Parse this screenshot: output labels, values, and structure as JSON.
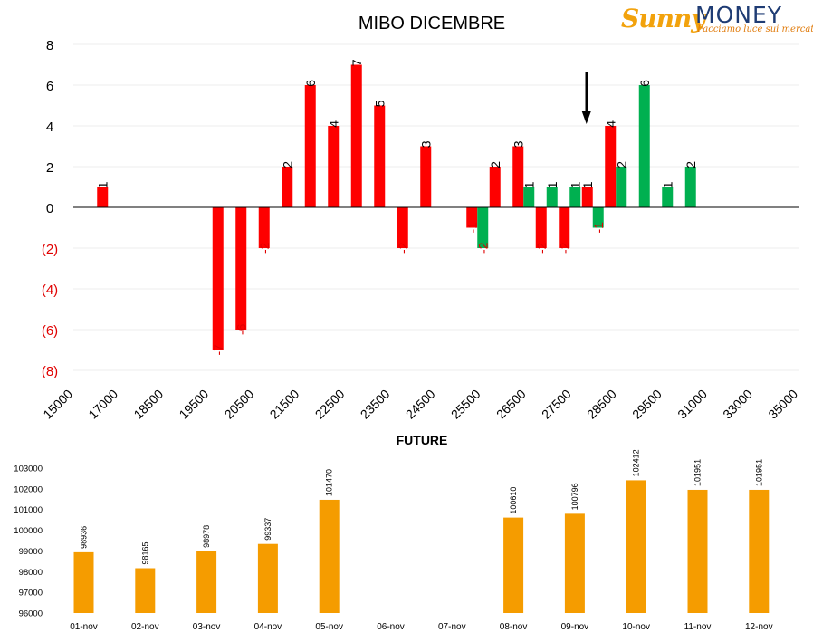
{
  "logo": {
    "brand_a": "Sunny",
    "brand_b": "MONEY",
    "tagline": "Facciamo luce sui mercati"
  },
  "colors": {
    "red": "#fe0000",
    "green": "#00b050",
    "orange": "#f59c00",
    "negative_label": "#e00000"
  },
  "chart_data": [
    {
      "type": "bar",
      "title": "MIBO DICEMBRE",
      "xlabel": "",
      "ylabel": "",
      "ylim": [
        -8,
        8
      ],
      "y_ticks": [
        "8",
        "6",
        "4",
        "2",
        "0",
        "(2)",
        "(4)",
        "(6)",
        "(8)"
      ],
      "y_tick_values": [
        8,
        6,
        4,
        2,
        0,
        -2,
        -4,
        -6,
        -8
      ],
      "x_ticks": [
        "15000",
        "17000",
        "18500",
        "19500",
        "20500",
        "21500",
        "22500",
        "23500",
        "24500",
        "25500",
        "26500",
        "27500",
        "28500",
        "29500",
        "31000",
        "33000",
        "35000"
      ],
      "grid": true,
      "series": [
        {
          "color": "red",
          "points": [
            {
              "slot": 1,
              "value": 1,
              "label": "1"
            },
            {
              "slot": 6,
              "value": -7,
              "label": "-7"
            },
            {
              "slot": 7,
              "value": -6,
              "label": "-6"
            },
            {
              "slot": 8,
              "value": -2,
              "label": "-2"
            },
            {
              "slot": 9,
              "value": 2,
              "label": "2"
            },
            {
              "slot": 10,
              "value": 6,
              "label": "6"
            },
            {
              "slot": 11,
              "value": 4,
              "label": "4"
            },
            {
              "slot": 12,
              "value": 7,
              "label": "7"
            },
            {
              "slot": 13,
              "value": 5,
              "label": "5"
            },
            {
              "slot": 14,
              "value": -2,
              "label": "-2"
            },
            {
              "slot": 15,
              "value": 3,
              "label": "3"
            },
            {
              "slot": 17,
              "value": -1,
              "label": "-1"
            },
            {
              "slot": 18,
              "value": 2,
              "label": "2"
            },
            {
              "slot": 19,
              "value": 3,
              "label": "3"
            },
            {
              "slot": 20,
              "value": -2,
              "label": "-2"
            },
            {
              "slot": 21,
              "value": -2,
              "label": "-2"
            },
            {
              "slot": 22,
              "value": 1,
              "label": "1"
            },
            {
              "slot": 23,
              "value": 4,
              "label": "4"
            }
          ]
        },
        {
          "color": "green",
          "points": [
            {
              "slot": 17,
              "value": -2,
              "label": "-2"
            },
            {
              "slot": 19,
              "value": 1,
              "label": "1"
            },
            {
              "slot": 20,
              "value": 1,
              "label": "1"
            },
            {
              "slot": 21,
              "value": 1,
              "label": "1"
            },
            {
              "slot": 22,
              "value": -1,
              "label": "-1"
            },
            {
              "slot": 23,
              "value": 2,
              "label": "2"
            },
            {
              "slot": 24,
              "value": 6,
              "label": "6"
            },
            {
              "slot": 25,
              "value": 1,
              "label": "1"
            },
            {
              "slot": 26,
              "value": 2,
              "label": "2"
            }
          ]
        }
      ],
      "annotation": {
        "type": "down-arrow",
        "near_slot": 22
      }
    },
    {
      "type": "bar",
      "title": "FUTURE",
      "xlabel": "",
      "ylabel": "",
      "ylim": [
        96000,
        103000
      ],
      "y_ticks": [
        "103000",
        "102000",
        "101000",
        "100000",
        "99000",
        "98000",
        "97000",
        "96000"
      ],
      "categories": [
        "01-nov",
        "02-nov",
        "03-nov",
        "04-nov",
        "05-nov",
        "06-nov",
        "07-nov",
        "08-nov",
        "09-nov",
        "10-nov",
        "11-nov",
        "12-nov"
      ],
      "values": [
        98936,
        98165,
        98978,
        99337,
        101470,
        null,
        null,
        100610,
        100796,
        102412,
        101951,
        101951
      ],
      "labels": [
        "98936",
        "98165",
        "98978",
        "99337",
        "101470",
        "",
        "",
        "100610",
        "100796",
        "102412",
        "101951",
        "101951"
      ],
      "color": "orange"
    }
  ]
}
